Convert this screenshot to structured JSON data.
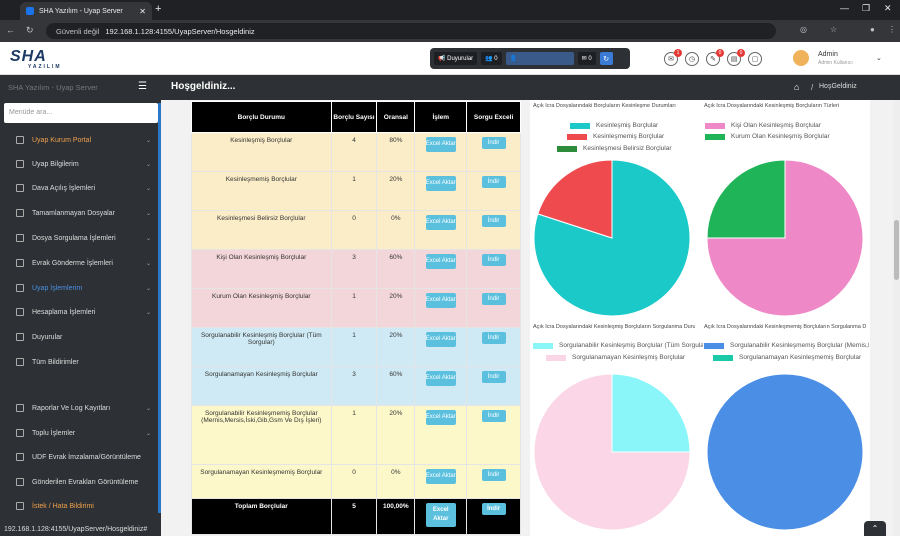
{
  "browser": {
    "tab_title": "SHA Yazılım - Uyap Server",
    "new_tab": "+",
    "security_label": "Güvenli değil",
    "url": "192.168.1.128:4155/UyapServer/Hosgeldiniz",
    "status_url": "192.168.1.128:4155/UyapServer/Hosgeldiniz#"
  },
  "topbar": {
    "logo": "SHA",
    "logo_sub": "YAZILIM",
    "announcements": "Duyurular",
    "count_a": "0",
    "count_b": "0",
    "badges": [
      "1",
      "0",
      "0"
    ],
    "user_name": "Admin",
    "user_role": "Admin Kullanıcı"
  },
  "sidebar": {
    "title": "SHA Yazılım - Uyap Server",
    "search_placeholder": "Menüde ara...",
    "items": [
      {
        "label": "Uyap Kurum Portal",
        "state": "orange",
        "caret": "⌄"
      },
      {
        "label": "Uyap Bilgilerim",
        "caret": "⌄"
      },
      {
        "label": "Dava Açılış İşlemleri",
        "caret": "⌄"
      },
      {
        "label": "Tamamlanmayan Dosyalar",
        "caret": "⌄"
      },
      {
        "label": "Dosya Sorgulama İşlemleri",
        "caret": "⌄"
      },
      {
        "label": "Evrak Gönderme İşlemleri",
        "caret": "⌄"
      },
      {
        "label": "Uyap İşlemlerim",
        "state": "blue",
        "caret": "⌄"
      },
      {
        "label": "Hesaplama İşlemleri",
        "caret": "⌄"
      },
      {
        "label": "Duyurular"
      },
      {
        "label": "Tüm Bildirimler"
      },
      {
        "label": "Raporlar Ve Log Kayıtları",
        "caret": "⌄"
      },
      {
        "label": "Toplu İşlemler",
        "caret": "⌄"
      },
      {
        "label": "UDF Evrak İmzalama/Görüntüleme"
      },
      {
        "label": "Gönderilen Evrakları Görüntüleme"
      },
      {
        "label": "İstek / Hata Bildirimi",
        "state": "orange"
      }
    ]
  },
  "header": {
    "title": "Hoşgeldiniz...",
    "breadcrumb": "HoşGeldiniz"
  },
  "table": {
    "headers": [
      "Borçlu Durumu",
      "Borçlu Sayısı",
      "Oransal",
      "İşlem",
      "Sorgu Exceli"
    ],
    "excel_label": "Excel Aktar",
    "indir_label": "İndir",
    "rows": [
      {
        "status": "Kesinleşmiş Borçlular",
        "count": "4",
        "ratio": "80%"
      },
      {
        "status": "Kesinleşmemiş Borçlular",
        "count": "1",
        "ratio": "20%"
      },
      {
        "status": "Kesinleşmesi Belirsiz Borçlular",
        "count": "0",
        "ratio": "0%"
      },
      {
        "status": "Kişi Olan Kesinleşmiş Borçlular",
        "count": "3",
        "ratio": "60%"
      },
      {
        "status": "Kurum Olan Kesinleşmiş Borçlular",
        "count": "1",
        "ratio": "20%"
      },
      {
        "status": "Sorgulanabilir Kesinleşmiş Borçlular (Tüm Sorgular)",
        "count": "1",
        "ratio": "20%"
      },
      {
        "status": "Sorgulanamayan Kesinleşmiş Borçlular",
        "count": "3",
        "ratio": "60%"
      },
      {
        "status": "Sorgulanabilir Kesinleşmemiş Borçlular (Mernis,Mersis,İski,Gib,Gsm Ve Dış İşleri)",
        "count": "1",
        "ratio": "20%"
      },
      {
        "status": "Sorgulanamayan Kesinleşmemiş Borçlular",
        "count": "0",
        "ratio": "0%"
      }
    ],
    "total": {
      "status": "Toplam Borçlular",
      "count": "5",
      "ratio": "100,00%"
    }
  },
  "chart_data": [
    {
      "type": "pie",
      "title": "Açık İcra Dosyalarındaki Borçluların Kesinleşme Durumları",
      "legend": [
        {
          "name": "Kesinleşmiş Borçlular",
          "color": "#1cc9c9"
        },
        {
          "name": "Kesinleşmemiş Borçlular",
          "color": "#ef4b4f"
        },
        {
          "name": "Kesinleşmesi Belirsiz Borçlular",
          "color": "#2c8c3c"
        }
      ],
      "values": [
        4,
        1,
        0
      ]
    },
    {
      "type": "pie",
      "title": "Açık İcra Dosyalarındaki Kesinleşmiş Borçluların Türleri",
      "legend": [
        {
          "name": "Kişi Olan Kesinleşmiş Borçlular",
          "color": "#ef88c6"
        },
        {
          "name": "Kurum Olan Kesinleşmiş Borçlular",
          "color": "#1eb457"
        }
      ],
      "values": [
        3,
        1
      ]
    },
    {
      "type": "pie",
      "title": "Açık İcra Dosyalarındaki Kesinleşmiş Borçluların Sorgulanma Durumları",
      "legend": [
        {
          "name": "Sorgulanabilir Kesinleşmiş Borçlular (Tüm Sorgular)",
          "color": "#8af6fa"
        },
        {
          "name": "Sorgulanamayan Kesinleşmiş Borçlular",
          "color": "#fad6e6"
        }
      ],
      "values": [
        1,
        3
      ]
    },
    {
      "type": "pie",
      "title": "Açık İcra Dosyalarındaki Kesinleşmemiş Borçluların Sorgulanma Durumları",
      "legend": [
        {
          "name": "Sorgulanabilir Kesinleşmemiş Borçlular (Mernis,Mersis,İski,Gib,Gsm Ve Dış İşleri)",
          "color": "#4a8ee6"
        },
        {
          "name": "Sorgulanamayan Kesinleşmemiş Borçlular",
          "color": "#1cc9a9"
        }
      ],
      "values": [
        1,
        0
      ]
    }
  ]
}
